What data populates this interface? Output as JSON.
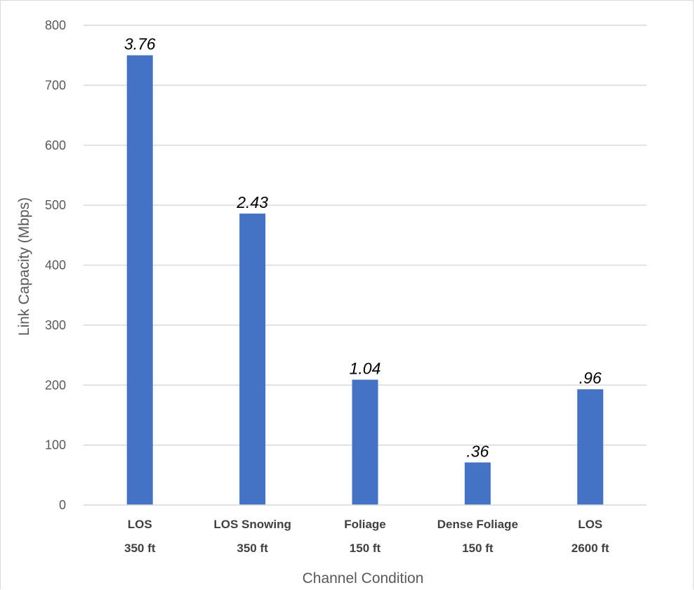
{
  "chart_data": {
    "type": "bar",
    "categories": [
      [
        "LOS",
        "350 ft"
      ],
      [
        "LOS Snowing",
        "350 ft"
      ],
      [
        "Foliage",
        "150 ft"
      ],
      [
        "Dense Foliage",
        "150 ft"
      ],
      [
        "LOS",
        "2600 ft"
      ]
    ],
    "values": [
      750,
      486,
      209,
      71,
      193
    ],
    "data_labels": [
      "3.76",
      "2.43",
      "1.04",
      ".36",
      ".96"
    ],
    "title": "",
    "xlabel": "Channel Condition",
    "ylabel": "Link Capacity (Mbps)",
    "ylim": [
      0,
      800
    ],
    "yticks": [
      0,
      100,
      200,
      300,
      400,
      500,
      600,
      700,
      800
    ],
    "grid": true,
    "legend": "none",
    "bar_color": "#4472C4",
    "grid_color": "#d9d9d9"
  }
}
